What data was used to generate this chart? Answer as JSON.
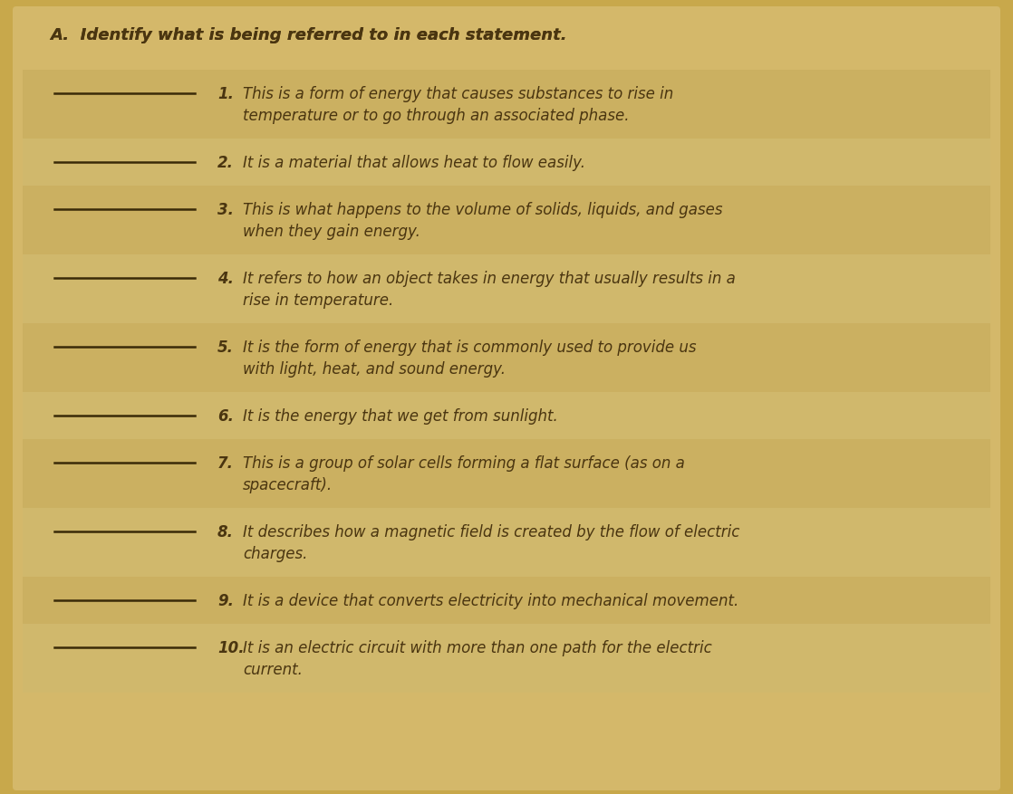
{
  "bg_color": "#c8a84b",
  "paper_color": "#d4b86a",
  "title": "A.  Identify what is being referred to in each statement.",
  "title_fontsize": 12.5,
  "text_color": "#4a3510",
  "line_color": "#3a2a08",
  "items": [
    {
      "number": "1.",
      "lines": [
        "This is a form of energy that causes substances to rise in",
        "temperature or to go through an associated phase."
      ]
    },
    {
      "number": "2.",
      "lines": [
        "It is a material that allows heat to flow easily."
      ]
    },
    {
      "number": "3.",
      "lines": [
        "This is what happens to the volume of solids, liquids, and gases",
        "when they gain energy."
      ]
    },
    {
      "number": "4.",
      "lines": [
        "It refers to how an object takes in energy that usually results in a",
        "rise in temperature."
      ]
    },
    {
      "number": "5.",
      "lines": [
        "It is the form of energy that is commonly used to provide us",
        "with light, heat, and sound energy."
      ]
    },
    {
      "number": "6.",
      "lines": [
        "It is the energy that we get from sunlight."
      ]
    },
    {
      "number": "7.",
      "lines": [
        "This is a group of solar cells forming a flat surface (as on a",
        "spacecraft)."
      ]
    },
    {
      "number": "8.",
      "lines": [
        "It describes how a magnetic field is created by the flow of electric",
        "charges."
      ]
    },
    {
      "number": "9.",
      "lines": [
        "It is a device that converts electricity into mechanical movement."
      ]
    },
    {
      "number": "10.",
      "lines": [
        "It is an electric circuit with more than one path for the electric",
        "current."
      ]
    }
  ],
  "stripe_colors": [
    "#c4aa5a",
    "#cdb96e"
  ],
  "font_size": 12.0,
  "line_heights": [
    2,
    1,
    2,
    2,
    2,
    1,
    2,
    2,
    1,
    2
  ]
}
